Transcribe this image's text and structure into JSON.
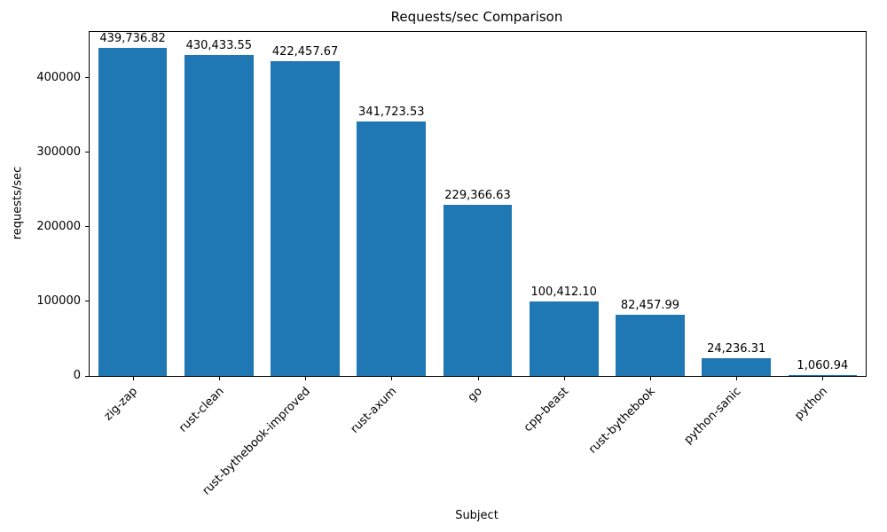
{
  "chart_data": {
    "type": "bar",
    "title": "Requests/sec Comparison",
    "xlabel": "Subject",
    "ylabel": "requests/sec",
    "categories": [
      "zig-zap",
      "rust-clean",
      "rust-bythebook-improved",
      "rust-axum",
      "go",
      "cpp-beast",
      "rust-bythebook",
      "python-sanic",
      "python"
    ],
    "values": [
      439736.82,
      430433.55,
      422457.67,
      341723.53,
      229366.63,
      100412.1,
      82457.99,
      24236.31,
      1060.94
    ],
    "value_labels": [
      "439,736.82",
      "430,433.55",
      "422,457.67",
      "341,723.53",
      "229,366.63",
      "100,412.10",
      "82,457.99",
      "24,236.31",
      "1,060.94"
    ],
    "ylim": [
      0,
      461723
    ],
    "yticks": [
      0,
      100000,
      200000,
      300000,
      400000
    ],
    "ytick_labels": [
      "0",
      "100000",
      "200000",
      "300000",
      "400000"
    ],
    "bar_color": "#1f77b4",
    "grid": false,
    "legend": null,
    "bar_relative_width": 0.8
  }
}
